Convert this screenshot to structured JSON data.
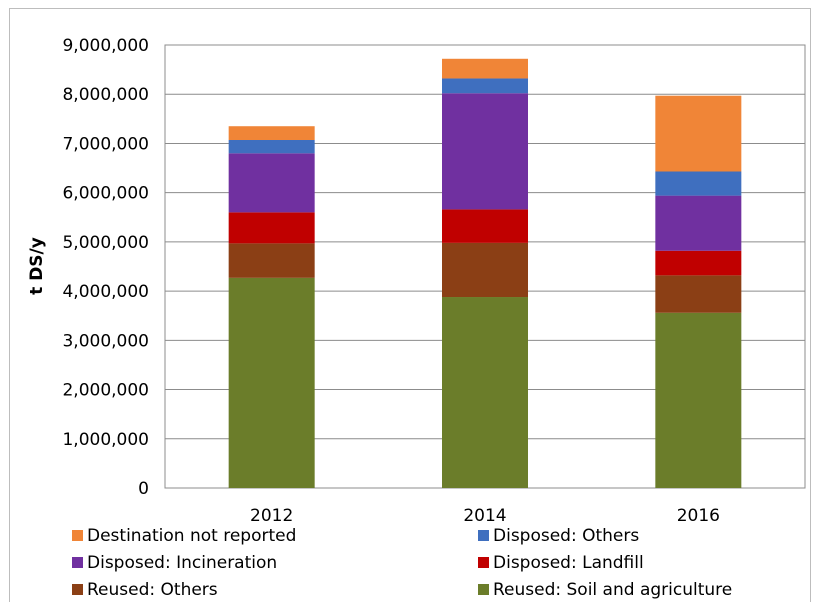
{
  "chart_data": {
    "type": "bar",
    "stacked": true,
    "ylabel": "t DS/y",
    "ylim": [
      0,
      9000000
    ],
    "yticks": [
      0,
      1000000,
      2000000,
      3000000,
      4000000,
      5000000,
      6000000,
      7000000,
      8000000,
      9000000
    ],
    "ytick_labels": [
      "0",
      "1,000,000",
      "2,000,000",
      "3,000,000",
      "4,000,000",
      "5,000,000",
      "6,000,000",
      "7,000,000",
      "8,000,000",
      "9,000,000"
    ],
    "categories": [
      "2012",
      "2014",
      "2016"
    ],
    "grid": true,
    "legend_position": "bottom",
    "series": [
      {
        "name": "Reused: Soil and agriculture",
        "color": "#6b7d2a",
        "values": [
          4270000,
          3880000,
          3560000
        ]
      },
      {
        "name": "Reused: Others",
        "color": "#8b3f15",
        "values": [
          700000,
          1100000,
          760000
        ]
      },
      {
        "name": "Disposed: Landfill",
        "color": "#c00000",
        "values": [
          630000,
          680000,
          500000
        ]
      },
      {
        "name": "Disposed: Incineration",
        "color": "#7030a0",
        "values": [
          1200000,
          2360000,
          1120000
        ]
      },
      {
        "name": "Disposed: Others",
        "color": "#3f6fbf",
        "values": [
          270000,
          300000,
          490000
        ]
      },
      {
        "name": "Destination not reported",
        "color": "#f08537",
        "values": [
          280000,
          400000,
          1540000
        ]
      }
    ],
    "legend_order": [
      "Destination not reported",
      "Disposed: Others",
      "Disposed: Incineration",
      "Disposed: Landfill",
      "Reused: Others",
      "Reused: Soil and agriculture"
    ]
  }
}
